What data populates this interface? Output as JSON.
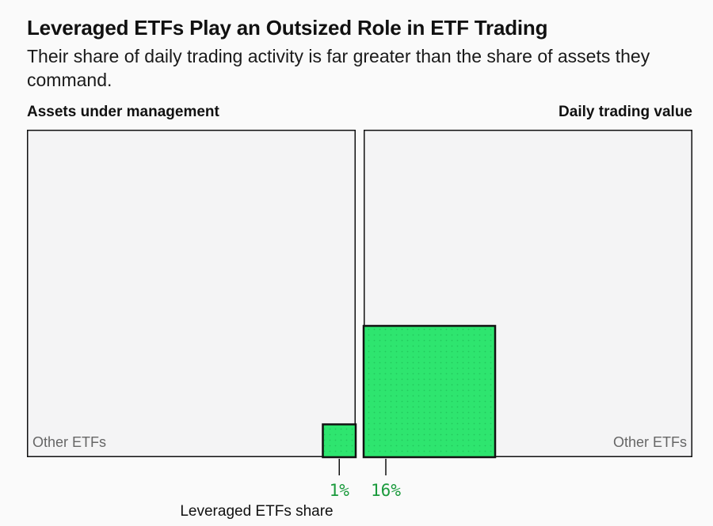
{
  "title": "Leveraged ETFs Play an Outsized Role in ETF Trading",
  "subtitle": "Their share of daily trading activity is far greater than the share of assets they command.",
  "colors": {
    "leveraged": "#2ee56f",
    "other": "#f4f4f5",
    "border": "#111111",
    "label_green": "#1a9a3c",
    "other_label": "#666666"
  },
  "chart_data": {
    "type": "treemap",
    "title": "Leveraged ETFs Play an Outsized Role in ETF Trading",
    "subtitle": "Their share of daily trading activity is far greater than the share of assets they command.",
    "panels": [
      {
        "name": "Assets under management",
        "leveraged_share": 1,
        "leveraged_label": "1%",
        "other_label": "Other ETFs",
        "leveraged_position": "bottom-right"
      },
      {
        "name": "Daily trading value",
        "leveraged_share": 16,
        "leveraged_label": "16%",
        "other_label": "Other ETFs",
        "leveraged_position": "bottom-left"
      }
    ],
    "annotation": "Leveraged ETFs share",
    "unit": "%"
  }
}
